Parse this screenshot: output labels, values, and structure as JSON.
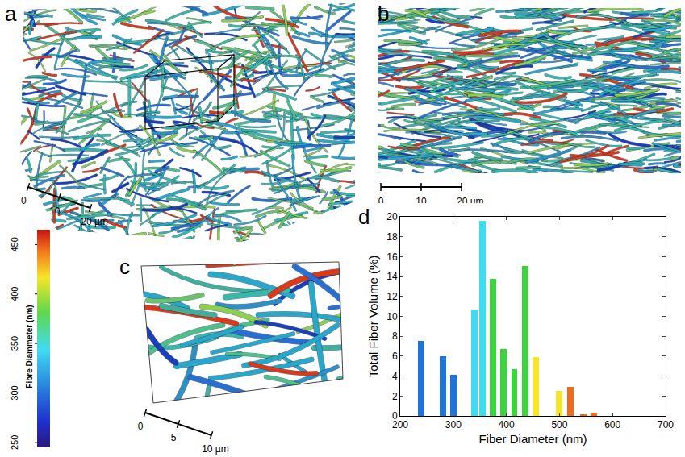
{
  "panels": [
    {
      "label": "a",
      "scale_bar": {
        "ticks": [
          0,
          10,
          {
            "value": 20,
            "label": "20 µm"
          }
        ]
      }
    },
    {
      "label": "b",
      "scale_bar": {
        "ticks": [
          0,
          10,
          {
            "value": 20,
            "label": "20 µm"
          }
        ]
      }
    },
    {
      "label": "c",
      "scale_bar": {
        "ticks": [
          0,
          5,
          {
            "value": 10,
            "label": "10 µm"
          }
        ]
      }
    },
    {
      "label": "d"
    }
  ],
  "colorbar": {
    "title": "Fibre Diammeter (nm)",
    "range": [
      245,
      465
    ],
    "ticks": [
      250,
      300,
      350,
      400,
      450
    ]
  },
  "chart_data": {
    "type": "bar",
    "x": [
      240,
      280,
      300,
      340,
      355,
      375,
      395,
      415,
      435,
      455,
      500,
      520,
      545,
      565
    ],
    "values": [
      7.5,
      6.0,
      4.1,
      10.7,
      19.6,
      13.8,
      6.7,
      4.7,
      15.1,
      5.9,
      2.5,
      2.9,
      0.15,
      0.3
    ],
    "colors": [
      "#1f74dc",
      "#1f74dc",
      "#1f74dc",
      "#3fdcf0",
      "#3fdcf0",
      "#3ed23e",
      "#3ed23e",
      "#3ed23e",
      "#3ed23e",
      "#f5e628",
      "#f5e628",
      "#f26a1b",
      "#f26a1b",
      "#f26a1b"
    ],
    "xlabel": "Fiber Diameter (nm)",
    "ylabel": "Total Fiber Volume (%)",
    "xlim": [
      200,
      700
    ],
    "xticks": [
      200,
      300,
      400,
      500,
      600,
      700
    ],
    "ylim": [
      0,
      20
    ],
    "yticks": [
      0,
      2,
      4,
      6,
      8,
      10,
      12,
      14,
      16,
      18,
      20
    ],
    "grid": false
  }
}
